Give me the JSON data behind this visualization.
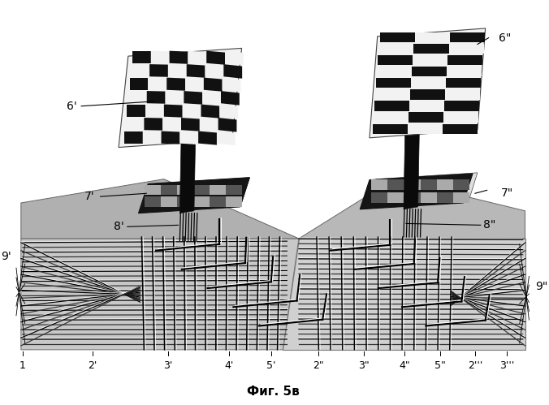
{
  "title": "Фиг. 5в",
  "bg_color": "#ffffff",
  "labels_bottom": [
    "1",
    "2'",
    "3'",
    "4'",
    "5'",
    "2\"",
    "3\"",
    "4\"",
    "5\"",
    "2’’’",
    "3’’’"
  ],
  "gray_light": "#e0e0e0",
  "gray_mid": "#aaaaaa",
  "gray_dark": "#555555",
  "black": "#111111",
  "white": "#ffffff"
}
